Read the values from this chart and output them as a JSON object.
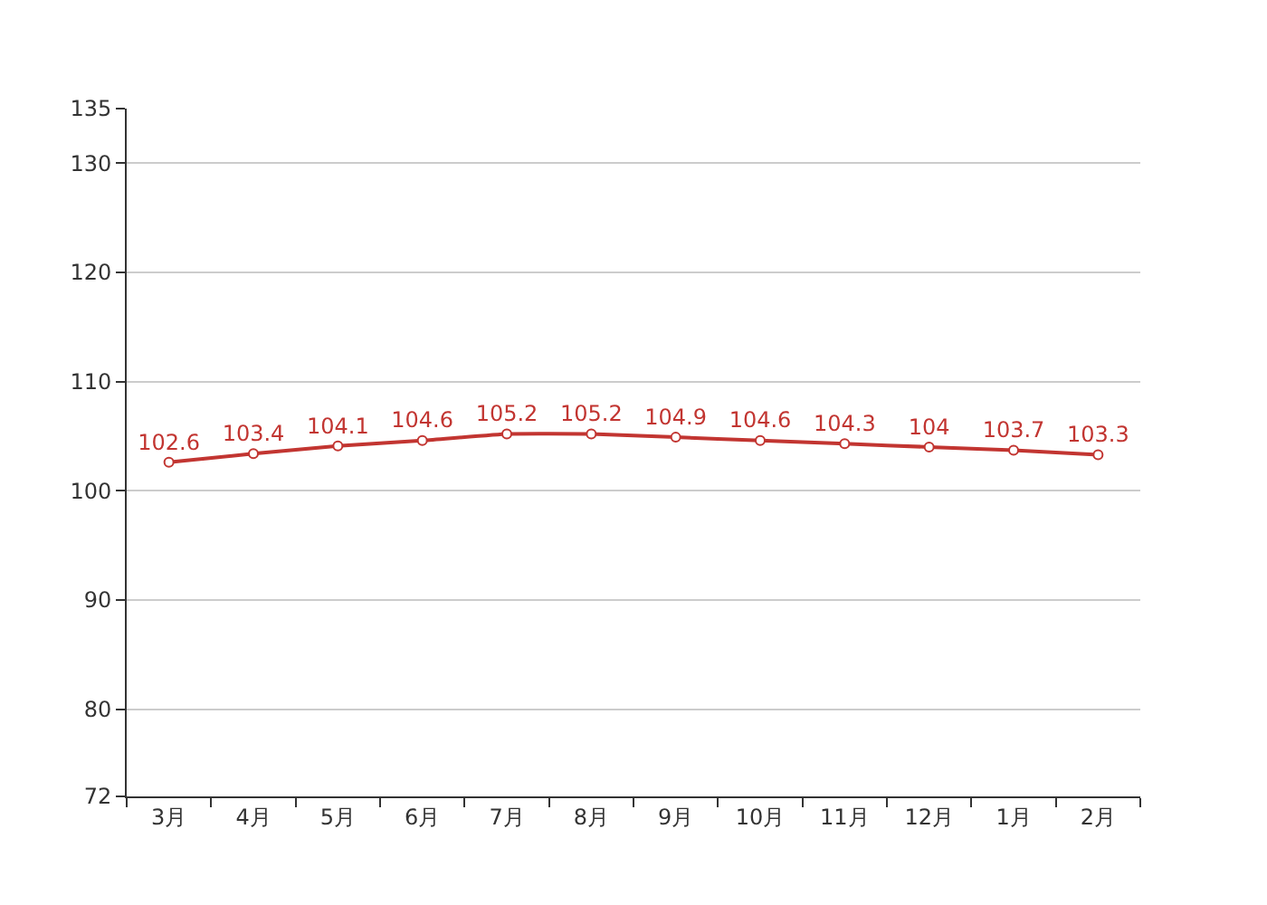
{
  "chart_data": {
    "type": "line",
    "categories": [
      "3月",
      "4月",
      "5月",
      "6月",
      "7月",
      "8月",
      "9月",
      "10月",
      "11月",
      "12月",
      "1月",
      "2月"
    ],
    "series": [
      {
        "color": "#c23531",
        "values": [
          102.6,
          103.4,
          104.1,
          104.6,
          105.2,
          105.2,
          104.9,
          104.6,
          104.3,
          104,
          103.7,
          103.3
        ]
      }
    ],
    "ylim": [
      72,
      135
    ],
    "yticks": [
      72,
      80,
      90,
      100,
      110,
      120,
      130,
      135
    ],
    "grid": "y",
    "marker": "circle",
    "line_style": "solid",
    "data_labels": true
  }
}
